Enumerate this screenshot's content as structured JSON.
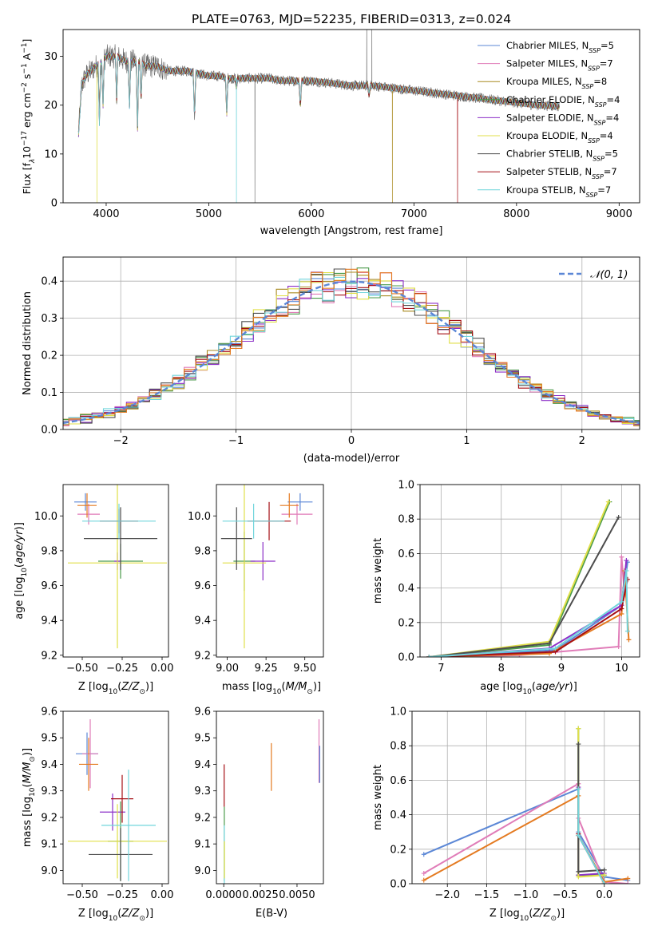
{
  "figure_title": "PLATE=0763, MJD=52235, FIBERID=0313, z=0.024",
  "series_names": [
    "Chabrier MILES, N_SSP=5",
    "Salpeter MILES, N_SSP=7",
    "Kroupa MILES, N_SSP=8",
    "Chabrier ELODIE, N_SSP=4",
    "Salpeter ELODIE, N_SSP=4",
    "Kroupa ELODIE, N_SSP=4",
    "Chabrier STELIB, N_SSP=5",
    "Salpeter STELIB, N_SSP=7",
    "Kroupa STELIB, N_SSP=7"
  ],
  "legend_labels": [
    {
      "pre": "Chabrier MILES, N",
      "sub": "SSP",
      "post": "=5"
    },
    {
      "pre": "Salpeter MILES, N",
      "sub": "SSP",
      "post": "=7"
    },
    {
      "pre": "Kroupa MILES, N",
      "sub": "SSP",
      "post": "=8"
    },
    {
      "pre": "Chabrier ELODIE, N",
      "sub": "SSP",
      "post": "=4"
    },
    {
      "pre": "Salpeter ELODIE, N",
      "sub": "SSP",
      "post": "=4"
    },
    {
      "pre": "Kroupa ELODIE, N",
      "sub": "SSP",
      "post": "=4"
    },
    {
      "pre": "Chabrier STELIB, N",
      "sub": "SSP",
      "post": "=5"
    },
    {
      "pre": "Salpeter STELIB, N",
      "sub": "SSP",
      "post": "=7"
    },
    {
      "pre": "Kroupa STELIB, N",
      "sub": "SSP",
      "post": "=7"
    }
  ],
  "colors": {
    "series": [
      "#5b87d6",
      "#e07cb8",
      "#a88a1f",
      "#4a9a4a",
      "#8c2fc7",
      "#e0df48",
      "#4d4d4d",
      "#a50f15",
      "#72d5dc"
    ],
    "kroupa_miles_marker": "#e47a20",
    "normal_curve": "#5b87d6",
    "grid": "#b0b0b0"
  },
  "chart_data": [
    {
      "id": "spectrum",
      "type": "line",
      "xlabel": "wavelength [Angstrom, rest frame]",
      "ylabel": "Flux [f_λ 10^-17 erg cm^-2 s^-1 A^-1]",
      "ylabel_parts": {
        "flux": "Flux [f",
        "lam": "λ",
        "ten": "10",
        "e17": "−17",
        "erg": " erg cm",
        "m2": "−2",
        "s": " s",
        "m1a": "−1",
        "a": " A",
        "m1b": "−1",
        "close": "]"
      },
      "xlim": [
        3580,
        9200
      ],
      "ylim": [
        0,
        35.5
      ],
      "xticks": [
        4000,
        5000,
        6000,
        7000,
        8000,
        9000
      ],
      "yticks": [
        0,
        10,
        20,
        30
      ],
      "grid": false,
      "legend_position": "upper right",
      "continuum": [
        [
          3730,
          14
        ],
        [
          3760,
          24
        ],
        [
          3800,
          26
        ],
        [
          3850,
          27
        ],
        [
          3900,
          28
        ],
        [
          3950,
          28.5
        ],
        [
          4000,
          30
        ],
        [
          4100,
          30
        ],
        [
          4200,
          29
        ],
        [
          4300,
          29
        ],
        [
          4400,
          28
        ],
        [
          4500,
          28
        ],
        [
          4600,
          27
        ],
        [
          4700,
          27
        ],
        [
          4800,
          27
        ],
        [
          4900,
          26.5
        ],
        [
          5000,
          26
        ],
        [
          5100,
          26
        ],
        [
          5200,
          25.5
        ],
        [
          5300,
          25.5
        ],
        [
          5400,
          25.5
        ],
        [
          5500,
          25.5
        ],
        [
          5600,
          25.5
        ],
        [
          5700,
          25
        ],
        [
          5800,
          25
        ],
        [
          5900,
          25
        ],
        [
          6000,
          25
        ],
        [
          6200,
          24.5
        ],
        [
          6400,
          24
        ],
        [
          6600,
          24
        ],
        [
          6800,
          23.5
        ],
        [
          7000,
          23
        ],
        [
          7200,
          22.5
        ],
        [
          7400,
          22
        ],
        [
          7600,
          21.5
        ],
        [
          7800,
          21
        ],
        [
          8000,
          20.5
        ],
        [
          8200,
          20
        ],
        [
          8400,
          19.8
        ]
      ],
      "absorption_lines": [
        [
          3934,
          12
        ],
        [
          3969,
          10
        ],
        [
          4102,
          9
        ],
        [
          4227,
          10
        ],
        [
          4305,
          15
        ],
        [
          4340,
          8
        ],
        [
          4861,
          10
        ],
        [
          5175,
          8
        ],
        [
          5270,
          2
        ],
        [
          5893,
          6
        ],
        [
          6563,
          2
        ]
      ],
      "model_spikes": [
        [
          3910,
          0,
          5
        ],
        [
          5270,
          0,
          8
        ],
        [
          6790,
          0,
          2
        ],
        [
          7425,
          0,
          7
        ]
      ],
      "data_spikes": [
        [
          5450,
          0
        ],
        [
          6540,
          40
        ],
        [
          6590,
          40
        ]
      ]
    },
    {
      "id": "residual_histogram",
      "type": "step",
      "xlabel": "(data-model)/error",
      "ylabel": "Normed distribution",
      "xlim": [
        -2.5,
        2.5
      ],
      "ylim": [
        0,
        0.465
      ],
      "xticks": [
        -2,
        -1,
        0,
        1,
        2
      ],
      "yticks": [
        0,
        0.1,
        0.2,
        0.3,
        0.4
      ],
      "grid": true,
      "bin_width": 0.1,
      "legend_label": "𝒩(0, 1)",
      "legend_position": "upper right"
    },
    {
      "id": "age_vs_Z",
      "type": "errorbar",
      "xlabel": "Z [log10(Z/Z⊙)]",
      "ylabel": "age [log10(age/yr)]",
      "xlim": [
        -0.62,
        0.04
      ],
      "ylim": [
        9.19,
        10.18
      ],
      "xticks": [
        -0.5,
        -0.25,
        0.0
      ],
      "yticks": [
        9.2,
        9.4,
        9.6,
        9.8,
        10.0
      ],
      "grid": false,
      "points": [
        {
          "x": -0.48,
          "y": 10.08,
          "xerr": 0.07,
          "yerr": 0.05,
          "c": 0
        },
        {
          "x": -0.46,
          "y": 10.01,
          "xerr": 0.07,
          "yerr": 0.06,
          "c": 1
        },
        {
          "x": -0.47,
          "y": 10.06,
          "xerr": 0.06,
          "yerr": 0.07,
          "c": 9
        },
        {
          "x": -0.26,
          "y": 9.74,
          "xerr": 0.14,
          "yerr": 0.1,
          "c": 3
        },
        {
          "x": -0.28,
          "y": 9.74,
          "xerr": 0.02,
          "yerr": 0.05,
          "c": 4
        },
        {
          "x": -0.28,
          "y": 9.73,
          "xerr": 0.31,
          "yerr": 0.49,
          "c": 5
        },
        {
          "x": -0.26,
          "y": 9.87,
          "xerr": 0.23,
          "yerr": 0.18,
          "c": 6
        },
        {
          "x": -0.27,
          "y": 9.97,
          "xerr": 0.12,
          "yerr": 0.07,
          "c": 7
        },
        {
          "x": -0.27,
          "y": 9.97,
          "xerr": 0.23,
          "yerr": 0.1,
          "c": 8
        }
      ]
    },
    {
      "id": "age_vs_mass",
      "type": "errorbar",
      "xlabel": "mass [log10(M/M⊙)]",
      "ylabel": "",
      "xlim": [
        8.93,
        9.62
      ],
      "ylim": [
        9.19,
        10.18
      ],
      "xticks": [
        9.0,
        9.25,
        9.5
      ],
      "yticks": [
        9.2,
        9.4,
        9.6,
        9.8,
        10.0
      ],
      "grid": false,
      "points": [
        {
          "x": 9.47,
          "y": 10.08,
          "xerr": 0.08,
          "yerr": 0.05,
          "c": 0
        },
        {
          "x": 9.45,
          "y": 10.01,
          "xerr": 0.1,
          "yerr": 0.06,
          "c": 1
        },
        {
          "x": 9.4,
          "y": 10.06,
          "xerr": 0.06,
          "yerr": 0.07,
          "c": 9
        },
        {
          "x": 9.11,
          "y": 9.74,
          "xerr": 0.07,
          "yerr": 0.17,
          "c": 3
        },
        {
          "x": 9.23,
          "y": 9.74,
          "xerr": 0.08,
          "yerr": 0.11,
          "c": 4
        },
        {
          "x": 9.11,
          "y": 9.73,
          "xerr": 0.14,
          "yerr": 0.49,
          "c": 5
        },
        {
          "x": 9.06,
          "y": 9.87,
          "xerr": 0.1,
          "yerr": 0.18,
          "c": 6
        },
        {
          "x": 9.27,
          "y": 9.97,
          "xerr": 0.14,
          "yerr": 0.11,
          "c": 7
        },
        {
          "x": 9.17,
          "y": 9.97,
          "xerr": 0.2,
          "yerr": 0.1,
          "c": 8
        }
      ]
    },
    {
      "id": "weight_vs_age",
      "type": "line",
      "xlabel": "age [log10(age/yr)]",
      "ylabel": "mass weight",
      "xlim": [
        6.65,
        10.3
      ],
      "ylim": [
        0,
        1.0
      ],
      "xticks": [
        7,
        8,
        9,
        10
      ],
      "yticks": [
        0,
        0.2,
        0.4,
        0.6,
        0.8,
        1.0
      ],
      "grid": true,
      "series": [
        {
          "c": 0,
          "points": [
            [
              6.8,
              0.0
            ],
            [
              8.9,
              0.04
            ],
            [
              10.0,
              0.3
            ],
            [
              10.1,
              0.55
            ]
          ]
        },
        {
          "c": 1,
          "points": [
            [
              6.8,
              0.0
            ],
            [
              8.3,
              0.01
            ],
            [
              9.95,
              0.06
            ],
            [
              10.0,
              0.58
            ],
            [
              10.05,
              0.36
            ]
          ]
        },
        {
          "c": 9,
          "points": [
            [
              6.8,
              0.0
            ],
            [
              8.8,
              0.02
            ],
            [
              10.0,
              0.25
            ],
            [
              10.05,
              0.5
            ],
            [
              10.12,
              0.1
            ]
          ]
        },
        {
          "c": 3,
          "points": [
            [
              6.8,
              0.0
            ],
            [
              8.8,
              0.07
            ],
            [
              9.8,
              0.9
            ]
          ]
        },
        {
          "c": 4,
          "points": [
            [
              6.8,
              0.0
            ],
            [
              8.8,
              0.05
            ],
            [
              10.0,
              0.3
            ],
            [
              10.08,
              0.56
            ]
          ]
        },
        {
          "c": 5,
          "points": [
            [
              6.8,
              0.0
            ],
            [
              8.8,
              0.09
            ],
            [
              9.78,
              0.9
            ]
          ]
        },
        {
          "c": 6,
          "points": [
            [
              6.8,
              0.0
            ],
            [
              8.8,
              0.08
            ],
            [
              9.95,
              0.81
            ]
          ]
        },
        {
          "c": 7,
          "points": [
            [
              6.8,
              0.0
            ],
            [
              8.9,
              0.03
            ],
            [
              10.0,
              0.28
            ],
            [
              10.1,
              0.45
            ]
          ]
        },
        {
          "c": 8,
          "points": [
            [
              6.8,
              0.0
            ],
            [
              8.9,
              0.05
            ],
            [
              10.0,
              0.32
            ],
            [
              10.08,
              0.5
            ],
            [
              10.1,
              0.15
            ]
          ]
        }
      ]
    },
    {
      "id": "mass_vs_Z",
      "type": "errorbar",
      "xlabel": "Z [log10(Z/Z⊙)]",
      "ylabel": "mass [log10(M/M⊙)]",
      "xlim": [
        -0.62,
        0.04
      ],
      "ylim": [
        8.95,
        9.6
      ],
      "xticks": [
        -0.5,
        -0.25,
        0.0
      ],
      "yticks": [
        9.0,
        9.1,
        9.2,
        9.3,
        9.4,
        9.5,
        9.6
      ],
      "grid": false,
      "points": [
        {
          "x": -0.47,
          "y": 9.44,
          "xerr": 0.07,
          "yerr": 0.08,
          "c": 0
        },
        {
          "x": -0.45,
          "y": 9.44,
          "xerr": 0.05,
          "yerr": 0.13,
          "c": 1
        },
        {
          "x": -0.46,
          "y": 9.4,
          "xerr": 0.06,
          "yerr": 0.1,
          "c": 9
        },
        {
          "x": -0.26,
          "y": 9.11,
          "xerr": 0.08,
          "yerr": 0.15,
          "c": 3
        },
        {
          "x": -0.31,
          "y": 9.22,
          "xerr": 0.08,
          "yerr": 0.07,
          "c": 4
        },
        {
          "x": -0.28,
          "y": 9.11,
          "xerr": 0.31,
          "yerr": 0.14,
          "c": 5
        },
        {
          "x": -0.26,
          "y": 9.06,
          "xerr": 0.2,
          "yerr": 0.1,
          "c": 6
        },
        {
          "x": -0.25,
          "y": 9.27,
          "xerr": 0.07,
          "yerr": 0.09,
          "c": 7
        },
        {
          "x": -0.21,
          "y": 9.17,
          "xerr": 0.17,
          "yerr": 0.21,
          "c": 8
        }
      ]
    },
    {
      "id": "mass_vs_EBV",
      "type": "errorbar",
      "xlabel": "E(B-V)",
      "ylabel": "",
      "xlim": [
        -0.0005,
        0.0068
      ],
      "ylim": [
        8.95,
        9.6
      ],
      "xticks": [
        0.0,
        0.0025,
        0.005
      ],
      "xtick_labels": [
        "0.0000",
        "0.0025",
        "0.0050"
      ],
      "yticks": [
        9.0,
        9.1,
        9.2,
        9.3,
        9.4,
        9.5,
        9.6
      ],
      "grid": false,
      "points": [
        {
          "x": 3e-05,
          "y": 9.32,
          "xerr": 0,
          "yerr": 0.08,
          "c": 7
        },
        {
          "x": 4e-05,
          "y": 9.1,
          "xerr": 0,
          "yerr": 0.14,
          "c": 3
        },
        {
          "x": 4e-05,
          "y": 9.05,
          "xerr": 0,
          "yerr": 0.12,
          "c": 8
        },
        {
          "x": 5e-05,
          "y": 9.04,
          "xerr": 0,
          "yerr": 0.07,
          "c": 5
        },
        {
          "x": 0.00325,
          "y": 9.39,
          "xerr": 0,
          "yerr": 0.09,
          "c": 9
        },
        {
          "x": 0.0065,
          "y": 9.45,
          "xerr": 0,
          "yerr": 0.12,
          "c": 1
        },
        {
          "x": 0.00655,
          "y": 9.4,
          "xerr": 0,
          "yerr": 0.07,
          "c": 0
        }
      ]
    },
    {
      "id": "weight_vs_Z",
      "type": "line",
      "xlabel": "Z [log10(Z/Z⊙)]",
      "ylabel": "mass weight",
      "xlim": [
        -2.45,
        0.45
      ],
      "ylim": [
        0,
        1.0
      ],
      "xticks": [
        -2.0,
        -1.5,
        -1.0,
        -0.5,
        0.0
      ],
      "xtick_labels": [
        "−2.0",
        "−1.5",
        "−1.0",
        "−0.5",
        "0.0"
      ],
      "yticks": [
        0,
        0.2,
        0.4,
        0.6,
        0.8,
        1.0
      ],
      "grid": true,
      "series": [
        {
          "c": 0,
          "points": [
            [
              -2.3,
              0.17
            ],
            [
              -0.33,
              0.55
            ],
            [
              -0.33,
              0.3
            ],
            [
              0.0,
              0.04
            ],
            [
              0.3,
              0.02
            ]
          ]
        },
        {
          "c": 1,
          "points": [
            [
              -2.3,
              0.06
            ],
            [
              -0.33,
              0.58
            ],
            [
              -0.33,
              0.38
            ],
            [
              0.0,
              0.01
            ],
            [
              0.3,
              0.0
            ]
          ]
        },
        {
          "c": 9,
          "points": [
            [
              -2.3,
              0.02
            ],
            [
              -0.33,
              0.51
            ],
            [
              -0.33,
              0.28
            ],
            [
              0.0,
              0.01
            ],
            [
              0.3,
              0.03
            ]
          ]
        },
        {
          "c": 3,
          "points": [
            [
              -0.33,
              0.9
            ],
            [
              -0.33,
              0.05
            ],
            [
              0.0,
              0.05
            ]
          ]
        },
        {
          "c": 4,
          "points": [
            [
              -0.33,
              0.56
            ],
            [
              -0.33,
              0.05
            ],
            [
              0.0,
              0.06
            ]
          ]
        },
        {
          "c": 5,
          "points": [
            [
              -0.33,
              0.9
            ],
            [
              -0.33,
              0.04
            ],
            [
              0.0,
              0.05
            ]
          ]
        },
        {
          "c": 6,
          "points": [
            [
              -0.33,
              0.81
            ],
            [
              -0.33,
              0.07
            ],
            [
              0.0,
              0.08
            ]
          ]
        },
        {
          "c": 7,
          "points": [
            [
              -0.33,
              0.29
            ],
            [
              -0.33,
              0.28
            ],
            [
              0.0,
              0.0
            ]
          ]
        },
        {
          "c": 8,
          "points": [
            [
              -0.33,
              0.55
            ],
            [
              -0.33,
              0.28
            ],
            [
              0.0,
              0.0
            ]
          ]
        }
      ]
    }
  ]
}
